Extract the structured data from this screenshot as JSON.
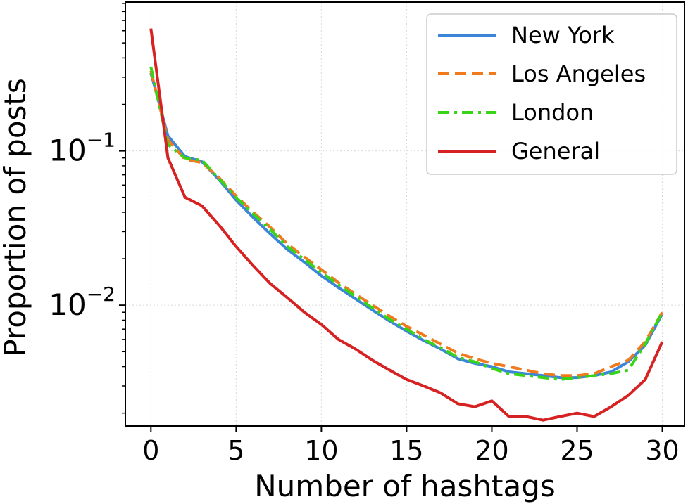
{
  "chart_data": {
    "type": "line",
    "title": "",
    "xlabel": "Number of hashtags",
    "ylabel": "Proportion of posts",
    "xlim": [
      -1.5,
      31.3
    ],
    "ylim": [
      0.00165,
      0.92
    ],
    "yscale": "log",
    "grid": true,
    "legend_position": "top-right",
    "x_ticks": [
      0,
      5,
      10,
      15,
      20,
      25,
      30
    ],
    "y_ticks": [
      {
        "value": 0.1,
        "base": "10",
        "exponent": "−1"
      },
      {
        "value": 0.01,
        "base": "10",
        "exponent": "−2"
      }
    ],
    "x": [
      0,
      1,
      2,
      3,
      4,
      5,
      6,
      7,
      8,
      9,
      10,
      11,
      12,
      13,
      14,
      15,
      16,
      17,
      18,
      19,
      20,
      21,
      22,
      23,
      24,
      25,
      26,
      27,
      28,
      29,
      30
    ],
    "series": [
      {
        "name": "New York",
        "color": "#3b86d9",
        "dash": "solid",
        "values": [
          0.32,
          0.125,
          0.092,
          0.085,
          0.065,
          0.048,
          0.037,
          0.029,
          0.023,
          0.019,
          0.0155,
          0.013,
          0.011,
          0.0093,
          0.0079,
          0.0068,
          0.0059,
          0.0052,
          0.0045,
          0.0042,
          0.004,
          0.0037,
          0.0036,
          0.0035,
          0.0034,
          0.0034,
          0.0035,
          0.0037,
          0.0043,
          0.0055,
          0.0088
        ]
      },
      {
        "name": "Los Angeles",
        "color": "#f07a1e",
        "dash": "dashed",
        "values": [
          0.33,
          0.118,
          0.088,
          0.084,
          0.067,
          0.051,
          0.04,
          0.032,
          0.025,
          0.0205,
          0.017,
          0.014,
          0.0118,
          0.01,
          0.0085,
          0.0073,
          0.0064,
          0.0056,
          0.0049,
          0.0045,
          0.0042,
          0.004,
          0.0038,
          0.0036,
          0.0035,
          0.0035,
          0.0036,
          0.004,
          0.0044,
          0.0058,
          0.009
        ]
      },
      {
        "name": "London",
        "color": "#3ad417",
        "dash": "dashdot",
        "values": [
          0.35,
          0.11,
          0.09,
          0.087,
          0.066,
          0.05,
          0.039,
          0.031,
          0.024,
          0.0198,
          0.0163,
          0.0136,
          0.0114,
          0.0096,
          0.0081,
          0.007,
          0.006,
          0.0053,
          0.0046,
          0.0043,
          0.0039,
          0.0036,
          0.0035,
          0.0034,
          0.0033,
          0.0034,
          0.0035,
          0.0036,
          0.0038,
          0.0056,
          0.009
        ]
      },
      {
        "name": "General",
        "color": "#d62222",
        "dash": "solid",
        "values": [
          0.62,
          0.09,
          0.05,
          0.044,
          0.033,
          0.024,
          0.018,
          0.0138,
          0.0112,
          0.009,
          0.0075,
          0.006,
          0.0052,
          0.0044,
          0.0038,
          0.0033,
          0.003,
          0.0027,
          0.0023,
          0.0022,
          0.0024,
          0.0019,
          0.0019,
          0.0018,
          0.0019,
          0.002,
          0.0019,
          0.0022,
          0.0026,
          0.0033,
          0.0058
        ]
      }
    ]
  }
}
